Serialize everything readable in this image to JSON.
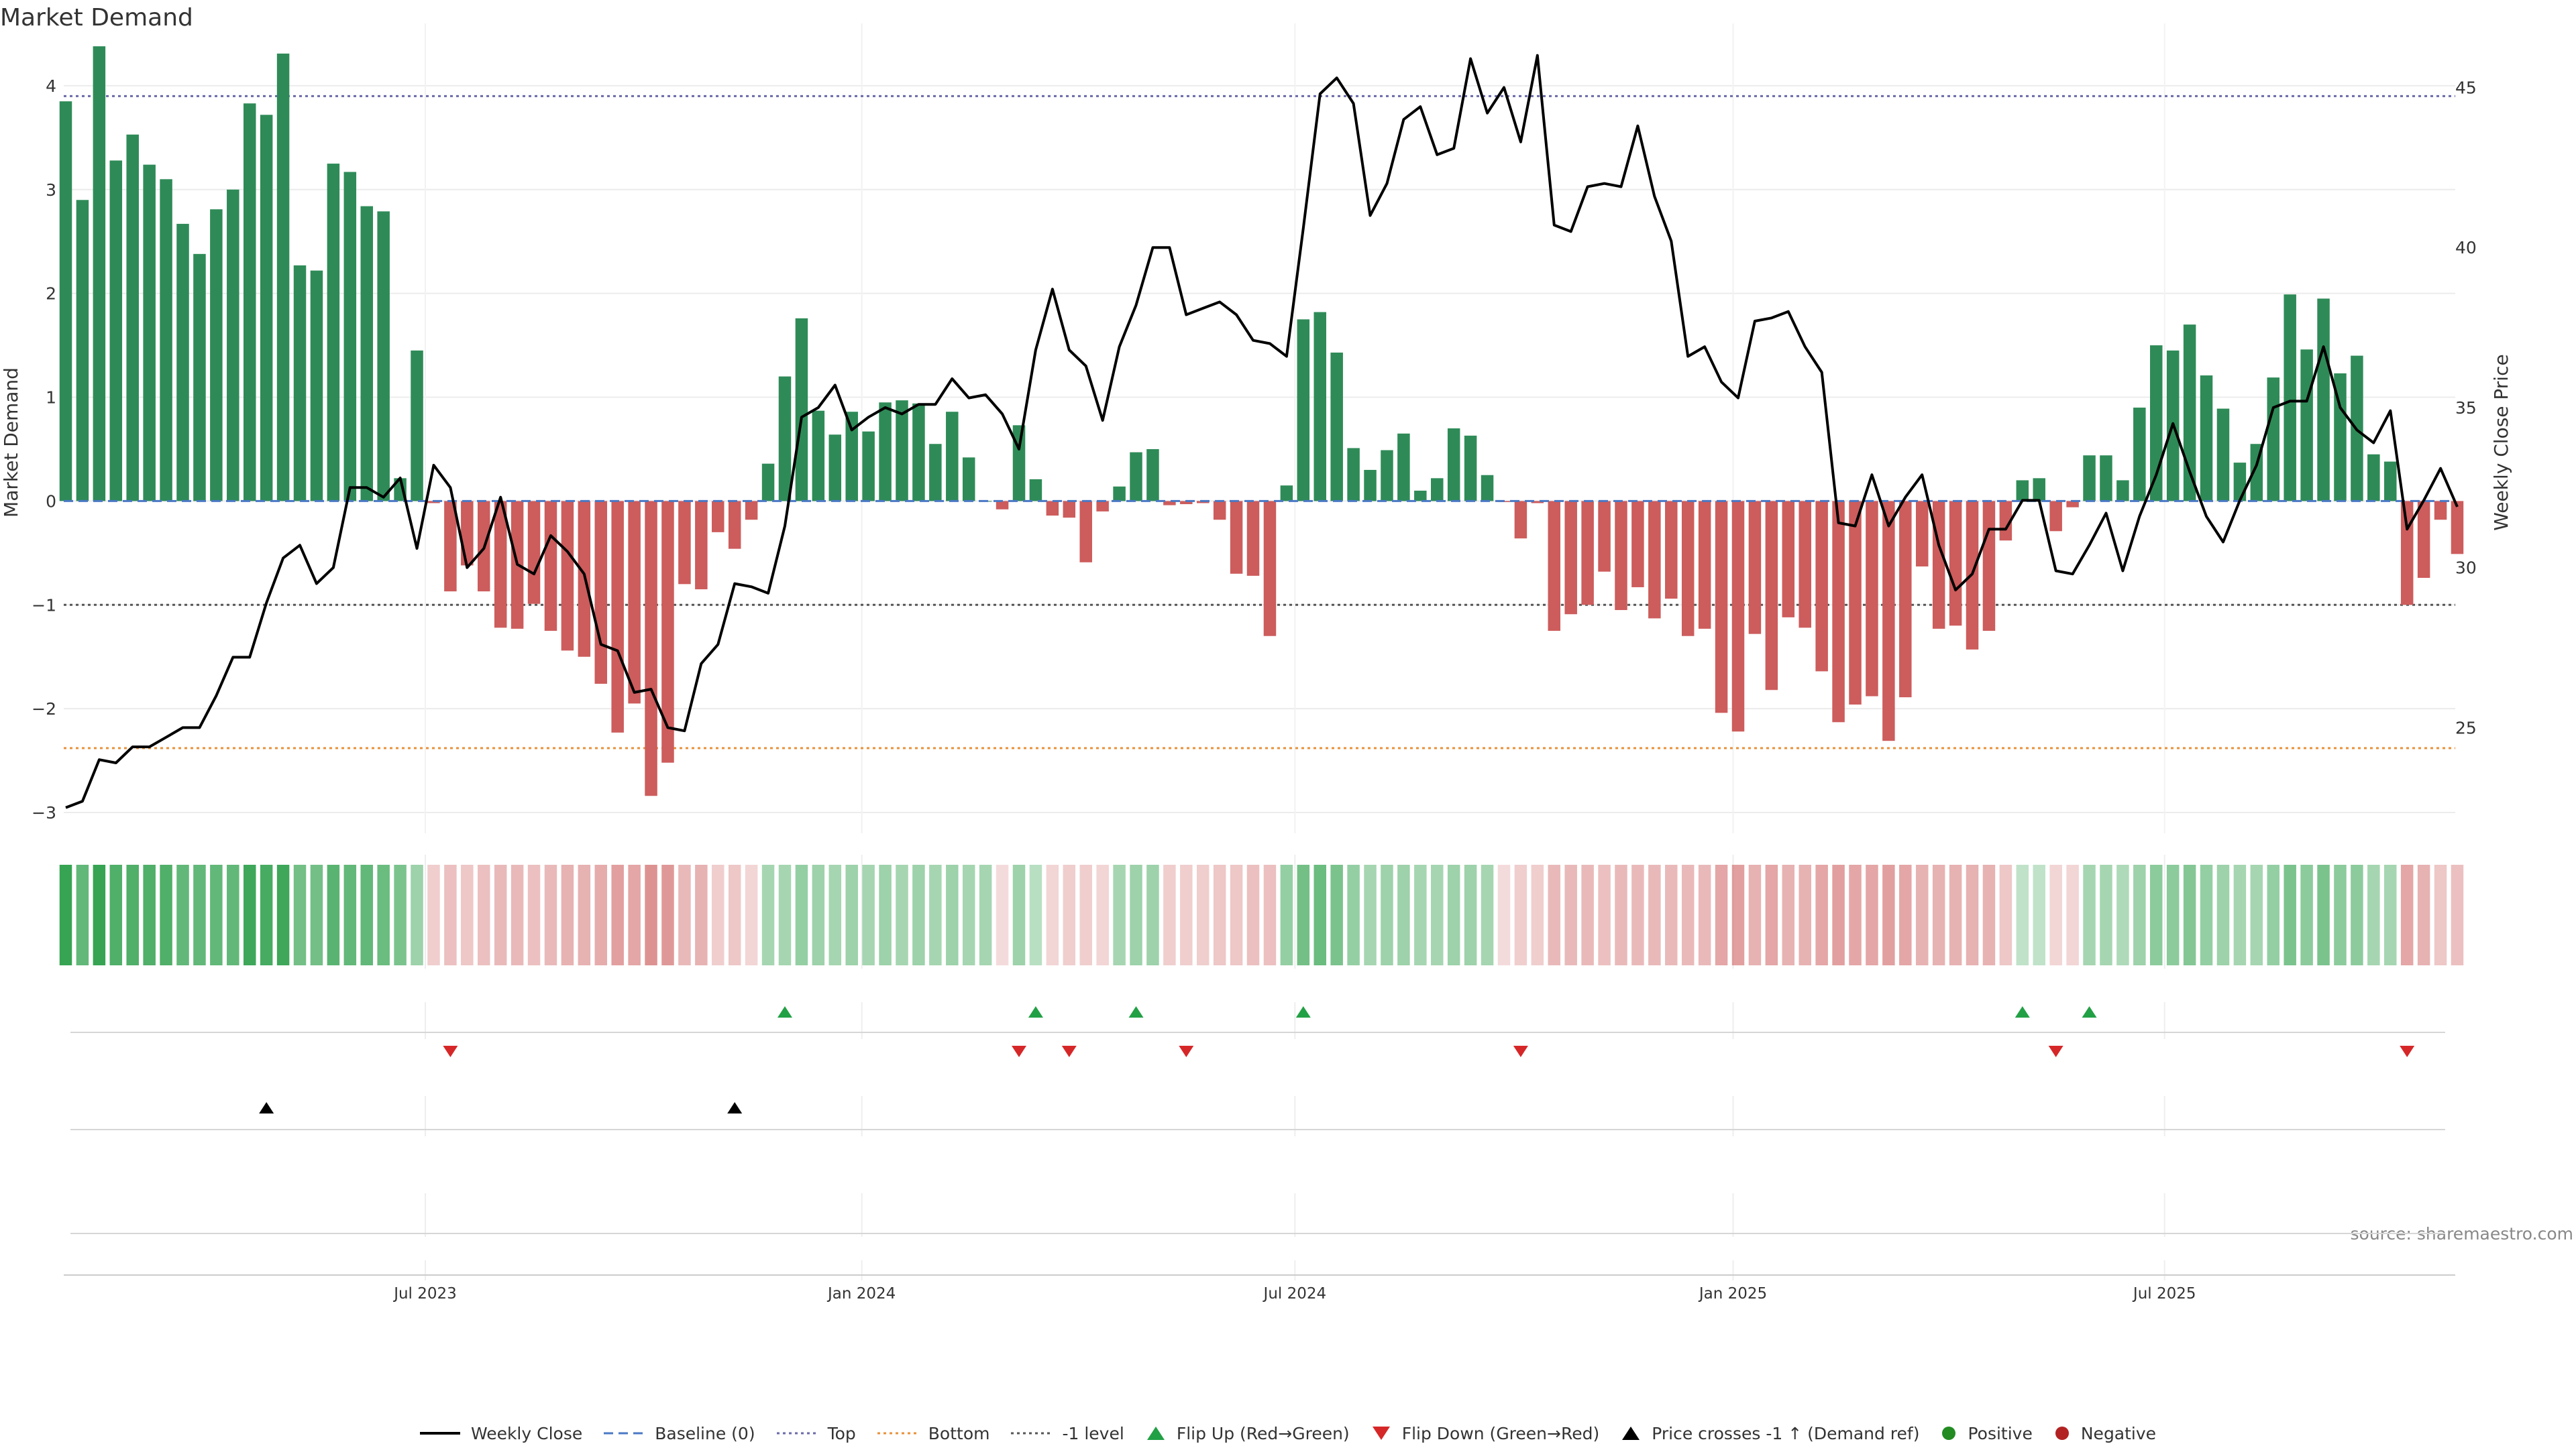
{
  "chart_data": {
    "type": "bar",
    "title": "Market Demand",
    "ylabel_left": "Market Demand",
    "ylabel_right": "Weekly Close Price",
    "source": "source: sharemaestro.com",
    "ylim_left": [
      -3.2,
      4.6
    ],
    "ylim_right": [
      21.7,
      47.0
    ],
    "yticks_left": [
      "−3",
      "−2",
      "−1",
      "0",
      "1",
      "2",
      "3",
      "4"
    ],
    "yticks_right": [
      "25",
      "30",
      "35",
      "40",
      "45"
    ],
    "x_tick_labels": [
      "Jul 2023",
      "Jan 2024",
      "Jul 2024",
      "Jan 2025",
      "Jul 2025"
    ],
    "x_tick_index": [
      21.5,
      47.6,
      73.5,
      99.7,
      125.5
    ],
    "levels": {
      "top": 3.9,
      "bottom": -2.38,
      "minus_one": -1.0,
      "baseline": 0
    },
    "demand": [
      3.85,
      2.9,
      4.38,
      3.28,
      3.53,
      3.24,
      3.1,
      2.67,
      2.38,
      2.81,
      3.0,
      3.83,
      3.72,
      4.31,
      2.27,
      2.22,
      3.25,
      3.17,
      2.84,
      2.79,
      0.22,
      1.45,
      -0.02,
      -0.87,
      -0.62,
      -0.87,
      -1.22,
      -1.23,
      -0.99,
      -1.25,
      -1.44,
      -1.5,
      -1.76,
      -2.23,
      -1.95,
      -2.84,
      -2.52,
      -0.8,
      -0.85,
      -0.3,
      -0.46,
      -0.18,
      0.36,
      1.2,
      1.76,
      0.87,
      0.64,
      0.86,
      0.67,
      0.95,
      0.97,
      0.94,
      0.55,
      0.86,
      0.42,
      0.0,
      -0.08,
      0.73,
      0.21,
      -0.14,
      -0.16,
      -0.59,
      -0.1,
      0.14,
      0.47,
      0.5,
      -0.04,
      -0.03,
      -0.02,
      -0.18,
      -0.7,
      -0.72,
      -1.3,
      0.15,
      1.75,
      1.82,
      1.43,
      0.51,
      0.3,
      0.49,
      0.65,
      0.1,
      0.22,
      0.7,
      0.63,
      0.25,
      -0.01,
      -0.36,
      -0.02,
      -1.25,
      -1.09,
      -1.0,
      -0.68,
      -1.05,
      -0.83,
      -1.13,
      -0.94,
      -1.3,
      -1.23,
      -2.04,
      -2.22,
      -1.28,
      -1.82,
      -1.12,
      -1.22,
      -1.64,
      -2.13,
      -1.96,
      -1.88,
      -2.31,
      -1.89,
      -0.63,
      -1.23,
      -1.2,
      -1.43,
      -1.25,
      -0.38,
      0.2,
      0.22,
      -0.29,
      -0.06,
      0.44,
      0.44,
      0.2,
      0.9,
      1.5,
      1.45,
      1.7,
      1.21,
      0.89,
      0.37,
      0.55,
      1.19,
      1.99,
      1.46,
      1.95,
      1.23,
      1.4,
      0.45,
      0.38,
      -1.0,
      -0.74,
      -0.18,
      -0.51
    ],
    "close": [
      22.5,
      22.7,
      24.0,
      23.9,
      24.4,
      24.4,
      24.7,
      25.0,
      25.0,
      26.0,
      27.2,
      27.2,
      28.9,
      30.3,
      30.7,
      29.5,
      30.0,
      32.5,
      32.5,
      32.2,
      32.8,
      30.6,
      33.2,
      32.5,
      30.0,
      30.6,
      32.2,
      30.1,
      29.8,
      31.0,
      30.5,
      29.8,
      27.6,
      27.4,
      26.1,
      26.2,
      25.0,
      24.9,
      27.0,
      27.6,
      29.5,
      29.4,
      29.2,
      31.3,
      34.7,
      35.0,
      35.7,
      34.3,
      34.7,
      35.0,
      34.8,
      35.1,
      35.1,
      35.9,
      35.3,
      35.4,
      34.8,
      33.7,
      36.8,
      38.7,
      36.8,
      36.3,
      34.6,
      36.9,
      38.2,
      40.0,
      40.0,
      37.9,
      38.1,
      38.3,
      37.9,
      37.1,
      37.0,
      36.6,
      40.6,
      44.8,
      45.3,
      44.5,
      41.0,
      42.0,
      44.0,
      44.4,
      42.9,
      43.1,
      45.9,
      44.2,
      45.0,
      43.3,
      46.0,
      40.7,
      40.5,
      41.9,
      42.0,
      41.9,
      43.8,
      41.6,
      40.2,
      36.6,
      36.9,
      35.8,
      35.3,
      37.7,
      37.8,
      38.0,
      36.9,
      36.1,
      31.4,
      31.3,
      32.9,
      31.3,
      32.2,
      32.9,
      30.7,
      29.3,
      29.8,
      31.2,
      31.2,
      32.1,
      32.1,
      29.9,
      29.8,
      30.7,
      31.7,
      29.9,
      31.6,
      32.9,
      34.5,
      33.0,
      31.6,
      30.8,
      32.1,
      33.2,
      35.0,
      35.2,
      35.2,
      36.9,
      35.0,
      34.3,
      33.9,
      34.9,
      31.2,
      32.1,
      33.1,
      31.9
    ],
    "regime": [
      0.95,
      0.7,
      0.95,
      0.8,
      0.8,
      0.8,
      0.8,
      0.7,
      0.7,
      0.7,
      0.7,
      0.9,
      0.85,
      0.9,
      0.6,
      0.6,
      0.75,
      0.7,
      0.7,
      0.65,
      0.55,
      0.35,
      -0.15,
      -0.25,
      -0.2,
      -0.25,
      -0.3,
      -0.3,
      -0.25,
      -0.3,
      -0.35,
      -0.35,
      -0.4,
      -0.5,
      -0.45,
      -0.6,
      -0.55,
      -0.3,
      -0.35,
      -0.15,
      -0.2,
      -0.1,
      0.3,
      0.3,
      0.4,
      0.35,
      0.3,
      0.35,
      0.3,
      0.35,
      0.3,
      0.35,
      0.3,
      0.35,
      0.3,
      0.3,
      -0.05,
      0.35,
      0.2,
      -0.1,
      -0.15,
      -0.15,
      -0.1,
      0.3,
      0.35,
      0.35,
      -0.15,
      -0.15,
      -0.15,
      -0.2,
      -0.2,
      -0.25,
      -0.25,
      0.4,
      0.6,
      0.65,
      0.55,
      0.4,
      0.3,
      0.35,
      0.35,
      0.3,
      0.3,
      0.35,
      0.35,
      0.3,
      -0.05,
      -0.15,
      -0.15,
      -0.3,
      -0.3,
      -0.3,
      -0.25,
      -0.3,
      -0.3,
      -0.3,
      -0.3,
      -0.3,
      -0.3,
      -0.45,
      -0.5,
      -0.35,
      -0.45,
      -0.35,
      -0.35,
      -0.45,
      -0.5,
      -0.45,
      -0.45,
      -0.5,
      -0.45,
      -0.35,
      -0.35,
      -0.35,
      -0.35,
      -0.35,
      -0.2,
      0.15,
      0.15,
      -0.1,
      -0.1,
      0.3,
      0.3,
      0.25,
      0.35,
      0.45,
      0.45,
      0.5,
      0.4,
      0.35,
      0.3,
      0.3,
      0.4,
      0.55,
      0.45,
      0.55,
      0.45,
      0.45,
      0.3,
      0.3,
      -0.45,
      -0.35,
      -0.2,
      -0.25
    ],
    "flip_up_index": [
      43,
      58,
      64,
      74,
      117,
      121
    ],
    "flip_down_index": [
      23,
      57,
      60,
      67,
      87,
      119,
      140
    ],
    "price_cross_index": [
      12,
      40
    ],
    "legend": [
      "Weekly Close",
      "Baseline (0)",
      "Top",
      "Bottom",
      "-1 level",
      "Flip Up (Red→Green)",
      "Flip Down (Green→Red)",
      "Price crosses -1 ↑ (Demand ref)",
      "Positive",
      "Negative"
    ]
  },
  "colors": {
    "positive_bar": "#2e8b57",
    "negative_bar": "#cd5c5c",
    "close_line": "#000000",
    "baseline": "#4a78c4",
    "top_line": "#6a6aaa",
    "bottom_line": "#e8913a",
    "minus_one_line": "#555555",
    "flip_up": "#22a045",
    "flip_down": "#d62728",
    "positive_dot": "#228b22",
    "negative_dot": "#b22222"
  }
}
